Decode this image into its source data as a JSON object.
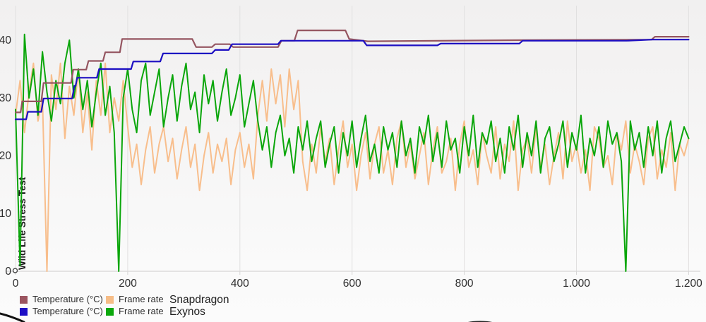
{
  "chart_data": {
    "type": "line",
    "title": "",
    "xlabel": "",
    "ylabel": "Wild Life Stress Test",
    "xlim": [
      0,
      1200
    ],
    "ylim": [
      0,
      45.7
    ],
    "grid": "vertical",
    "legend_position": "bottom-left",
    "x_ticks": [
      0,
      200,
      400,
      600,
      800,
      1000,
      1200
    ],
    "x_tick_labels": [
      "0",
      "200",
      "400",
      "600",
      "800",
      "1.000",
      "1.200"
    ],
    "y_ticks": [
      0,
      10,
      20,
      30,
      40
    ],
    "y_tick_labels": [
      "0",
      "10",
      "20",
      "30",
      "40"
    ],
    "origin_marker": {
      "x": 0,
      "y": 0
    },
    "series": [
      {
        "name": "Frame rate Snapdragon",
        "color": "#f8be8c",
        "style": "noisy",
        "x_start": 0,
        "x_step": 8,
        "values": [
          27,
          33,
          24,
          31,
          36,
          26,
          30,
          0,
          34,
          28,
          36,
          23,
          32,
          27,
          35,
          24,
          31,
          21,
          33,
          27,
          36,
          24,
          30,
          26,
          33,
          25,
          18,
          22,
          15,
          21,
          25,
          17,
          22,
          25,
          19,
          23,
          16,
          21,
          25,
          18,
          22,
          14,
          20,
          24,
          17,
          22,
          19,
          23,
          15,
          21,
          24,
          18,
          22,
          16,
          27,
          33,
          26,
          35,
          29,
          34,
          25,
          35,
          28,
          33,
          19,
          14,
          22,
          17,
          25,
          19,
          23,
          15,
          21,
          26,
          18,
          22,
          14,
          20,
          24,
          16,
          22,
          25,
          17,
          21,
          15,
          23,
          26,
          18,
          22,
          16,
          20,
          24,
          15,
          21,
          25,
          17,
          19,
          23,
          14,
          22,
          26,
          18,
          21,
          15,
          24,
          20,
          17,
          25,
          16,
          22,
          19,
          26,
          14,
          21,
          23,
          17,
          25,
          18,
          22,
          15,
          20,
          24,
          16,
          26,
          19,
          22,
          17,
          21,
          14,
          25,
          23,
          18,
          20,
          15,
          24,
          21,
          26,
          17,
          22,
          19,
          15,
          23,
          25,
          16,
          21,
          18,
          24,
          14,
          22,
          20,
          23
        ]
      },
      {
        "name": "Frame rate Exynos",
        "color": "#0aa60a",
        "style": "noisy",
        "x_start": 0,
        "x_step": 8,
        "values": [
          28,
          1,
          41,
          30,
          35,
          27,
          38,
          31,
          26,
          33,
          29,
          36,
          40,
          30,
          35,
          28,
          33,
          25,
          31,
          36,
          27,
          32,
          24,
          0,
          30,
          35,
          28,
          24,
          33,
          36,
          27,
          31,
          35,
          25,
          30,
          34,
          26,
          32,
          36,
          28,
          31,
          24,
          34,
          29,
          33,
          26,
          31,
          35,
          27,
          30,
          34,
          25,
          29,
          33,
          26,
          21,
          25,
          18,
          24,
          27,
          20,
          23,
          17,
          25,
          21,
          26,
          19,
          23,
          26,
          18,
          22,
          25,
          17,
          24,
          20,
          26,
          18,
          23,
          27,
          19,
          22,
          17,
          25,
          21,
          24,
          18,
          26,
          20,
          23,
          17,
          25,
          22,
          27,
          19,
          24,
          18,
          26,
          21,
          23,
          17,
          25,
          20,
          27,
          18,
          24,
          22,
          26,
          19,
          23,
          17,
          25,
          21,
          27,
          18,
          24,
          20,
          26,
          17,
          23,
          25,
          19,
          22,
          26,
          18,
          24,
          21,
          27,
          17,
          23,
          20,
          25,
          18,
          26,
          22,
          24,
          19,
          0,
          26,
          21,
          24,
          18,
          25,
          20,
          26,
          17,
          23,
          26,
          19,
          22,
          25,
          23
        ]
      },
      {
        "name": "Temperature (°C) Snapdragon",
        "color": "#955560",
        "style": "step",
        "points": [
          [
            0,
            27.5
          ],
          [
            9,
            27.5
          ],
          [
            12,
            29.4
          ],
          [
            46,
            29.4
          ],
          [
            50,
            32.6
          ],
          [
            99,
            32.6
          ],
          [
            103,
            34.9
          ],
          [
            126,
            34.9
          ],
          [
            130,
            36.4
          ],
          [
            156,
            36.4
          ],
          [
            160,
            37.9
          ],
          [
            186,
            37.9
          ],
          [
            190,
            40.2
          ],
          [
            315,
            40.2
          ],
          [
            322,
            38.8
          ],
          [
            350,
            38.8
          ],
          [
            356,
            39.3
          ],
          [
            382,
            39.3
          ],
          [
            388,
            38.8
          ],
          [
            468,
            38.8
          ],
          [
            474,
            39.9
          ],
          [
            497,
            39.9
          ],
          [
            503,
            41.7
          ],
          [
            588,
            41.7
          ],
          [
            595,
            40.2
          ],
          [
            628,
            39.8
          ],
          [
            900,
            40.0
          ],
          [
            1134,
            40.1
          ],
          [
            1140,
            40.6
          ],
          [
            1200,
            40.6
          ]
        ]
      },
      {
        "name": "Temperature (°C) Exynos",
        "color": "#1c0ec2",
        "style": "step",
        "points": [
          [
            0,
            26.3
          ],
          [
            19,
            26.3
          ],
          [
            22,
            27.6
          ],
          [
            46,
            27.6
          ],
          [
            50,
            29.9
          ],
          [
            101,
            29.9
          ],
          [
            105,
            32.1
          ],
          [
            107,
            32.1
          ],
          [
            110,
            33.5
          ],
          [
            145,
            33.5
          ],
          [
            149,
            35.0
          ],
          [
            206,
            35.0
          ],
          [
            210,
            36.3
          ],
          [
            258,
            36.3
          ],
          [
            263,
            37.7
          ],
          [
            350,
            37.7
          ],
          [
            356,
            38.3
          ],
          [
            380,
            38.3
          ],
          [
            386,
            39.3
          ],
          [
            468,
            39.3
          ],
          [
            473,
            39.9
          ],
          [
            620,
            39.9
          ],
          [
            626,
            39.1
          ],
          [
            752,
            39.1
          ],
          [
            758,
            39.4
          ],
          [
            898,
            39.4
          ],
          [
            904,
            39.9
          ],
          [
            1043,
            39.9
          ],
          [
            1090,
            39.9
          ],
          [
            1135,
            40.1
          ],
          [
            1200,
            40.1
          ]
        ]
      }
    ]
  },
  "legend": {
    "rows": [
      {
        "temp_label": "Temperature (°C)",
        "temp_color": "#9b5560",
        "fps_label": "Frame rate",
        "fps_color": "#f6bd87",
        "group": "Snapdragon"
      },
      {
        "temp_label": "Temperature (°C)",
        "temp_color": "#1d0ec5",
        "fps_label": "Frame rate",
        "fps_color": "#0ba80b",
        "group": "Exynos"
      }
    ]
  },
  "colors": {
    "gridline": "#e1e0e0",
    "axis_line": "#d6d5d5",
    "tick_text": "#2e2e2e",
    "ylabel_text": "#1a1a1a"
  }
}
